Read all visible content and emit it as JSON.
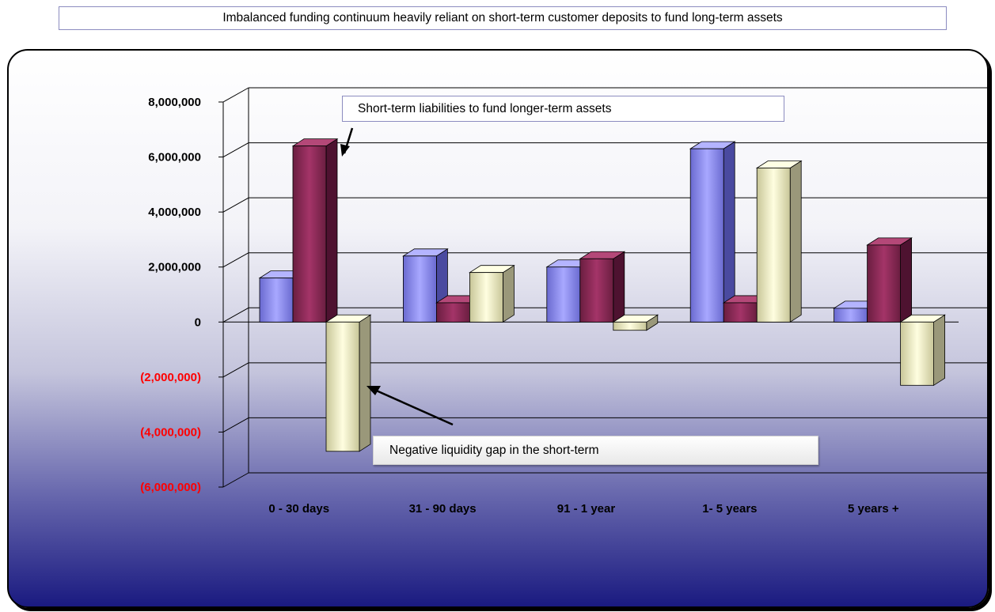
{
  "title": "Imbalanced funding continuum heavily reliant on short-term customer deposits to fund long-term assets",
  "annotations": {
    "top": "Short-term liabilities to fund longer-term assets",
    "bottom": "Negative liquidity gap in the short-term"
  },
  "chart_data": {
    "type": "bar",
    "title": "Imbalanced funding continuum heavily reliant on short-term customer deposits to fund long-term assets",
    "categories": [
      "0 - 30 days",
      "31 - 90 days",
      "91 - 1 year",
      "1- 5 years",
      "5 years +"
    ],
    "series": [
      {
        "values": [
          1600000,
          2400000,
          2000000,
          6300000,
          500000
        ]
      },
      {
        "values": [
          6400000,
          700000,
          2300000,
          700000,
          2800000
        ]
      },
      {
        "values": [
          -4700000,
          1800000,
          -300000,
          5600000,
          -2300000
        ]
      }
    ],
    "ylim": [
      -6000000,
      8000000
    ],
    "yticks": [
      8000000,
      6000000,
      4000000,
      2000000,
      0,
      -2000000,
      -4000000,
      -6000000
    ],
    "ytick_labels": [
      "8,000,000",
      "6,000,000",
      "4,000,000",
      "2,000,000",
      "0",
      "(2,000,000)",
      "(4,000,000)",
      "(6,000,000)"
    ],
    "negative_label_color": "#ff0000",
    "series_colors": [
      "#9a9af0",
      "#902857",
      "#f4f2c2"
    ],
    "grid": true,
    "style": "3d-clustered"
  }
}
